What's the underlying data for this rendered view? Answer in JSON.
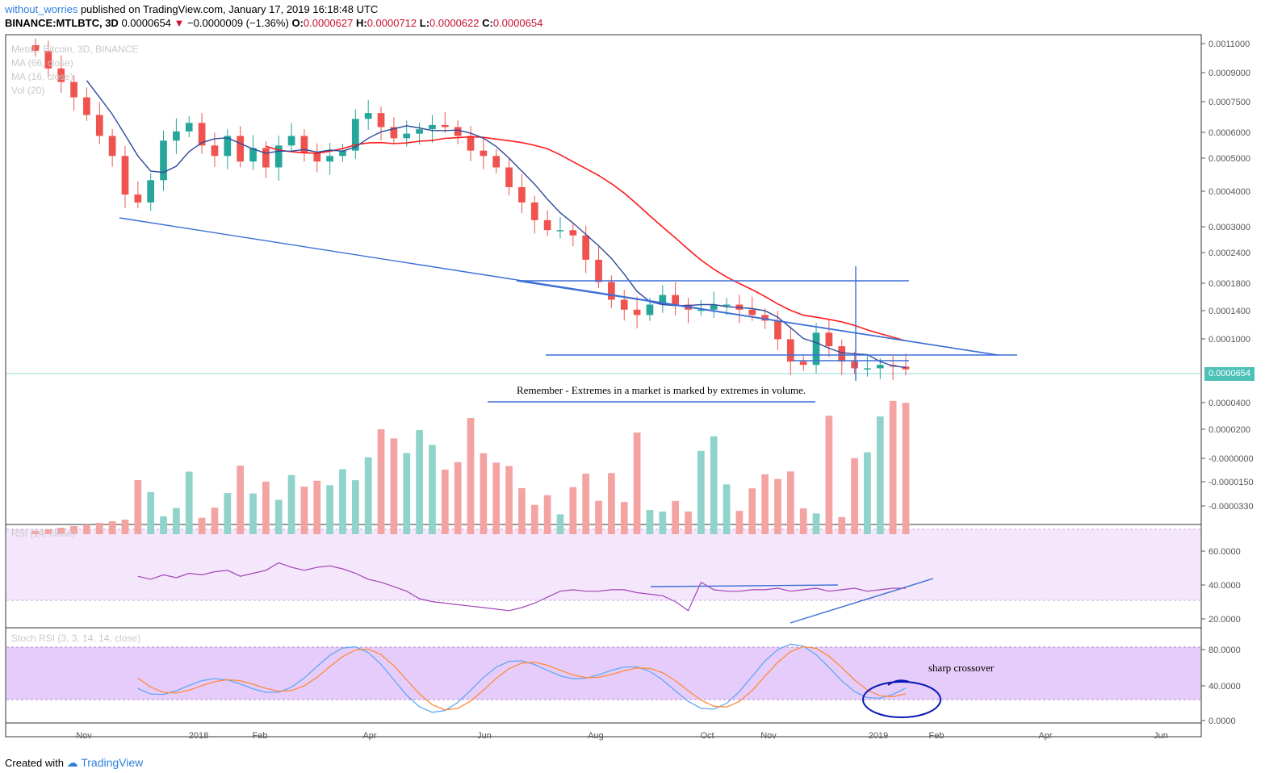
{
  "header": {
    "author": "without_worries",
    "published": "published on TradingView.com, January 17, 2019 16:18:48 UTC",
    "symbol_line": "BINANCE:MTLBTC, 3D",
    "last_price": "0.0000654",
    "change": "−0.0000009 (−1.36%)",
    "open_label": "O:",
    "open": "0.0000627",
    "high_label": "H:",
    "high": "0.0000712",
    "low_label": "L:",
    "low": "0.0000622",
    "close_label": "C:",
    "close": "0.0000654"
  },
  "legend": {
    "title": "Metal / Bitcoin, 3D, BINANCE",
    "ma1": "MA (66, close)",
    "ma2": "MA (16, close)",
    "vol": "Vol (20)"
  },
  "indicators": {
    "rsi_label": "RSI (14, close)",
    "stoch_label": "Stoch RSI (3, 3, 14, 14, close)"
  },
  "annotations": {
    "volume_note": "Remember - Extremes in a market is marked by extremes in volume.",
    "crossover_note": "sharp crossover"
  },
  "price_axis": [
    "0.0011000",
    "0.0009000",
    "0.0007500",
    "0.0006000",
    "0.0005000",
    "0.0004000",
    "0.0003000",
    "0.0002400",
    "0.0001800",
    "0.0001400",
    "0.0001000"
  ],
  "current_price_tag": "0.0000654",
  "volume_axis": [
    "0.0000400",
    "0.0000200",
    "-0.0000000",
    "-0.0000150",
    "-0.0000330"
  ],
  "rsi_axis": [
    "60.0000",
    "40.0000",
    "20.0000"
  ],
  "stoch_axis": [
    "80.0000",
    "40.0000",
    "0.0000"
  ],
  "time_axis": [
    "Nov",
    "2018",
    "Feb",
    "Apr",
    "Jun",
    "Aug",
    "Oct",
    "Nov",
    "2019",
    "Feb",
    "Apr",
    "Jun"
  ],
  "footer": {
    "created": "Created with",
    "brand": "TradingView"
  },
  "colors": {
    "up": "#26a69a",
    "down": "#ef5350",
    "vol_up": "#8fd3ca",
    "vol_down": "#f4a3a3",
    "ma_fast": "#2e4a9c",
    "ma_slow": "#ff1a1a",
    "trendline": "#3b6fd6",
    "rsi_line": "#a246b8",
    "rsi_band": "#f4e6fb",
    "stoch_band": "#e6ccfa",
    "stoch_k": "#5fa8f5",
    "stoch_d": "#ff8a3d",
    "price_tag": "#4ec1b7"
  },
  "chart_data": {
    "type": "candlestick",
    "symbol": "MTLBTC",
    "exchange": "BINANCE",
    "interval": "3D",
    "price_scale": "log",
    "price_range": [
      6e-05,
      0.00115
    ],
    "close_series": [
      0.00105,
      0.0009,
      0.0008,
      0.0007,
      0.0006,
      0.0005,
      0.00042,
      0.0003,
      0.00028,
      0.00034,
      0.00048,
      0.00052,
      0.00056,
      0.00046,
      0.00042,
      0.0005,
      0.0004,
      0.00045,
      0.00038,
      0.00046,
      0.0005,
      0.00043,
      0.0004,
      0.00042,
      0.00044,
      0.00058,
      0.00061,
      0.00054,
      0.00049,
      0.00051,
      0.00053,
      0.00055,
      0.00054,
      0.0005,
      0.00044,
      0.00042,
      0.00038,
      0.00032,
      0.00028,
      0.00024,
      0.00022,
      0.00022,
      0.00021,
      0.00017,
      0.00014,
      0.00012,
      0.00011,
      0.000105,
      0.000115,
      0.000125,
      0.000115,
      0.00011,
      0.00011,
      0.000115,
      0.000115,
      0.00011,
      0.000105,
      0.0001,
      8.5e-05,
      7e-05,
      6.8e-05,
      9e-05,
      8e-05,
      7e-05,
      6.6e-05,
      6.6e-05,
      6.8e-05,
      6.7e-05,
      6.54e-05
    ],
    "ma_66_range": [
      0.0006,
      0.000105
    ],
    "ma_16_range": [
      0.0009,
      7.2e-05
    ],
    "rsi_range": [
      20,
      60
    ],
    "stoch_range": [
      0,
      100
    ]
  }
}
